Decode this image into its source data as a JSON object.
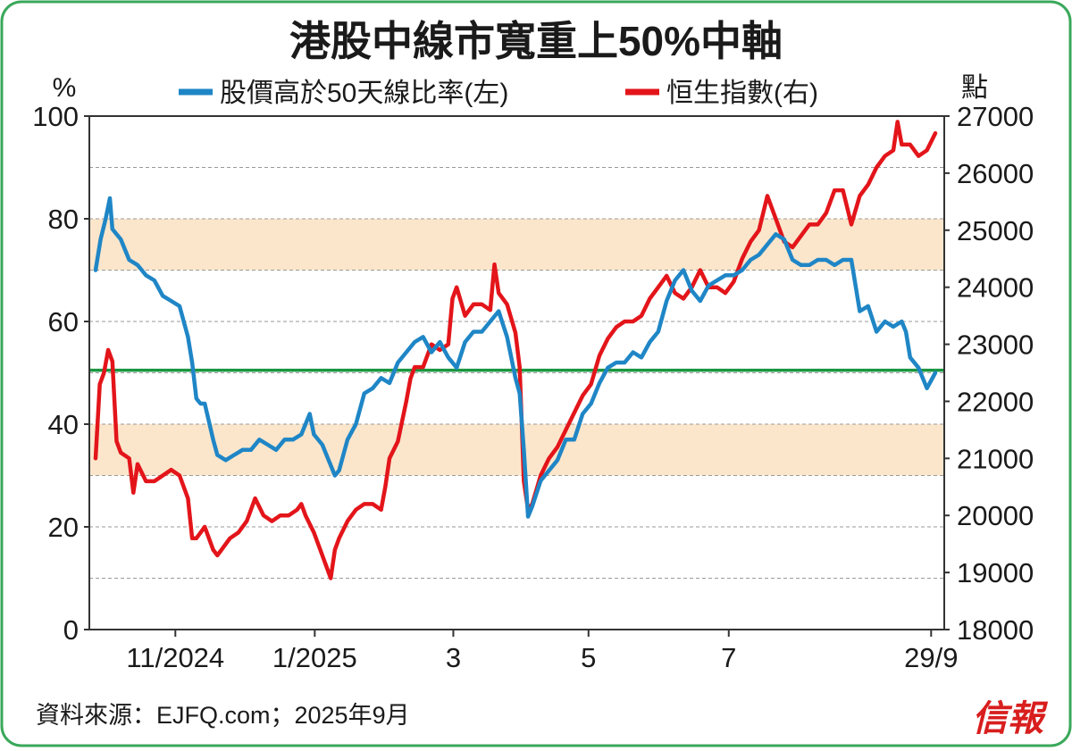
{
  "chart_data": {
    "type": "line",
    "title": "港股中線市寬重上50%中軸",
    "source": "資料來源：EJFQ.com；2025年9月",
    "logo_text": "信報",
    "left_axis": {
      "unit": "%",
      "range": [
        0,
        100
      ],
      "ticks": [
        "0",
        "20",
        "40",
        "60",
        "80",
        "100"
      ]
    },
    "right_axis": {
      "unit": "點",
      "range": [
        18000,
        27000
      ],
      "ticks": [
        "18000",
        "19000",
        "20000",
        "21000",
        "22000",
        "23000",
        "24000",
        "25000",
        "26000",
        "27000"
      ]
    },
    "x_tick_labels": [
      "11/2024",
      "1/2025",
      "3",
      "5",
      "7",
      "29/9"
    ],
    "x_ticks": [
      {
        "label": "11/2024",
        "t": 0.095
      },
      {
        "label": "1/2025",
        "t": 0.261
      },
      {
        "label": "3",
        "t": 0.426
      },
      {
        "label": "5",
        "t": 0.587
      },
      {
        "label": "7",
        "t": 0.754
      },
      {
        "label": "29/9",
        "t": 0.995
      }
    ],
    "bands": [
      {
        "from": 30,
        "to": 40
      },
      {
        "from": 70,
        "to": 80
      }
    ],
    "reference_line": {
      "value": 50.5,
      "color": "#1a9641"
    },
    "grid": true,
    "legend_position": "top",
    "series": [
      {
        "name": "股價高於50天線比率(左)",
        "axis": "left",
        "color": "#1f86c6",
        "points": [
          [
            0.0,
            70
          ],
          [
            0.006,
            76
          ],
          [
            0.012,
            80
          ],
          [
            0.017,
            84
          ],
          [
            0.02,
            78
          ],
          [
            0.03,
            76
          ],
          [
            0.04,
            72
          ],
          [
            0.05,
            71
          ],
          [
            0.055,
            70
          ],
          [
            0.06,
            69
          ],
          [
            0.07,
            68
          ],
          [
            0.08,
            65
          ],
          [
            0.09,
            64
          ],
          [
            0.1,
            63
          ],
          [
            0.11,
            57
          ],
          [
            0.115,
            52
          ],
          [
            0.12,
            45
          ],
          [
            0.125,
            44
          ],
          [
            0.13,
            44
          ],
          [
            0.14,
            37
          ],
          [
            0.145,
            34
          ],
          [
            0.155,
            33
          ],
          [
            0.165,
            34
          ],
          [
            0.175,
            35
          ],
          [
            0.185,
            35
          ],
          [
            0.195,
            37
          ],
          [
            0.205,
            36
          ],
          [
            0.215,
            35
          ],
          [
            0.225,
            37
          ],
          [
            0.235,
            37
          ],
          [
            0.245,
            38
          ],
          [
            0.255,
            42
          ],
          [
            0.26,
            38
          ],
          [
            0.27,
            36
          ],
          [
            0.28,
            32
          ],
          [
            0.285,
            30
          ],
          [
            0.29,
            31
          ],
          [
            0.3,
            37
          ],
          [
            0.31,
            40
          ],
          [
            0.32,
            46
          ],
          [
            0.33,
            47
          ],
          [
            0.34,
            49
          ],
          [
            0.35,
            48
          ],
          [
            0.36,
            52
          ],
          [
            0.37,
            54
          ],
          [
            0.38,
            56
          ],
          [
            0.39,
            57
          ],
          [
            0.4,
            54
          ],
          [
            0.41,
            56
          ],
          [
            0.42,
            53
          ],
          [
            0.43,
            51
          ],
          [
            0.44,
            56
          ],
          [
            0.45,
            58
          ],
          [
            0.46,
            58
          ],
          [
            0.47,
            60
          ],
          [
            0.48,
            62
          ],
          [
            0.49,
            57
          ],
          [
            0.5,
            49
          ],
          [
            0.505,
            46
          ],
          [
            0.51,
            35
          ],
          [
            0.515,
            22
          ],
          [
            0.52,
            24
          ],
          [
            0.53,
            29
          ],
          [
            0.54,
            31
          ],
          [
            0.55,
            33
          ],
          [
            0.56,
            37
          ],
          [
            0.57,
            37
          ],
          [
            0.58,
            42
          ],
          [
            0.59,
            44
          ],
          [
            0.6,
            48
          ],
          [
            0.61,
            51
          ],
          [
            0.62,
            52
          ],
          [
            0.63,
            52
          ],
          [
            0.64,
            54
          ],
          [
            0.65,
            53
          ],
          [
            0.66,
            56
          ],
          [
            0.67,
            58
          ],
          [
            0.68,
            64
          ],
          [
            0.69,
            68
          ],
          [
            0.7,
            70
          ],
          [
            0.71,
            66
          ],
          [
            0.72,
            64
          ],
          [
            0.73,
            67
          ],
          [
            0.74,
            68
          ],
          [
            0.75,
            69
          ],
          [
            0.76,
            69
          ],
          [
            0.77,
            70
          ],
          [
            0.78,
            72
          ],
          [
            0.79,
            73
          ],
          [
            0.8,
            75
          ],
          [
            0.81,
            77
          ],
          [
            0.82,
            76
          ],
          [
            0.83,
            72
          ],
          [
            0.84,
            71
          ],
          [
            0.85,
            71
          ],
          [
            0.86,
            72
          ],
          [
            0.87,
            72
          ],
          [
            0.88,
            71
          ],
          [
            0.89,
            72
          ],
          [
            0.9,
            72
          ],
          [
            0.91,
            62
          ],
          [
            0.92,
            63
          ],
          [
            0.93,
            58
          ],
          [
            0.94,
            60
          ],
          [
            0.95,
            59
          ],
          [
            0.96,
            60
          ],
          [
            0.965,
            58
          ],
          [
            0.97,
            53
          ],
          [
            0.98,
            51
          ],
          [
            0.99,
            47
          ],
          [
            1.0,
            50
          ]
        ]
      },
      {
        "name": "恒生指數(右)",
        "axis": "right",
        "color": "#e3151a",
        "points": [
          [
            0.0,
            21000
          ],
          [
            0.005,
            22300
          ],
          [
            0.01,
            22500
          ],
          [
            0.015,
            22900
          ],
          [
            0.02,
            22700
          ],
          [
            0.025,
            21300
          ],
          [
            0.03,
            21100
          ],
          [
            0.04,
            21000
          ],
          [
            0.045,
            20400
          ],
          [
            0.05,
            20900
          ],
          [
            0.06,
            20600
          ],
          [
            0.07,
            20600
          ],
          [
            0.08,
            20700
          ],
          [
            0.09,
            20800
          ],
          [
            0.1,
            20700
          ],
          [
            0.11,
            20300
          ],
          [
            0.115,
            19600
          ],
          [
            0.12,
            19600
          ],
          [
            0.125,
            19700
          ],
          [
            0.13,
            19800
          ],
          [
            0.14,
            19400
          ],
          [
            0.145,
            19300
          ],
          [
            0.15,
            19400
          ],
          [
            0.16,
            19600
          ],
          [
            0.17,
            19700
          ],
          [
            0.18,
            19900
          ],
          [
            0.19,
            20300
          ],
          [
            0.2,
            20000
          ],
          [
            0.21,
            19900
          ],
          [
            0.22,
            20000
          ],
          [
            0.23,
            20000
          ],
          [
            0.24,
            20100
          ],
          [
            0.245,
            20200
          ],
          [
            0.25,
            20000
          ],
          [
            0.26,
            19700
          ],
          [
            0.27,
            19300
          ],
          [
            0.275,
            19100
          ],
          [
            0.28,
            18900
          ],
          [
            0.285,
            19400
          ],
          [
            0.29,
            19600
          ],
          [
            0.3,
            19900
          ],
          [
            0.31,
            20100
          ],
          [
            0.32,
            20200
          ],
          [
            0.33,
            20200
          ],
          [
            0.34,
            20100
          ],
          [
            0.345,
            20500
          ],
          [
            0.35,
            21000
          ],
          [
            0.36,
            21300
          ],
          [
            0.37,
            22000
          ],
          [
            0.375,
            22400
          ],
          [
            0.38,
            22600
          ],
          [
            0.39,
            22600
          ],
          [
            0.4,
            23000
          ],
          [
            0.41,
            22900
          ],
          [
            0.42,
            23000
          ],
          [
            0.425,
            23800
          ],
          [
            0.43,
            24000
          ],
          [
            0.44,
            23500
          ],
          [
            0.45,
            23700
          ],
          [
            0.46,
            23700
          ],
          [
            0.47,
            23600
          ],
          [
            0.475,
            24400
          ],
          [
            0.48,
            23900
          ],
          [
            0.49,
            23700
          ],
          [
            0.5,
            23200
          ],
          [
            0.505,
            22600
          ],
          [
            0.51,
            20600
          ],
          [
            0.515,
            20100
          ],
          [
            0.52,
            20200
          ],
          [
            0.53,
            20700
          ],
          [
            0.54,
            21000
          ],
          [
            0.55,
            21200
          ],
          [
            0.56,
            21500
          ],
          [
            0.57,
            21800
          ],
          [
            0.58,
            22100
          ],
          [
            0.59,
            22300
          ],
          [
            0.6,
            22800
          ],
          [
            0.61,
            23100
          ],
          [
            0.62,
            23300
          ],
          [
            0.63,
            23400
          ],
          [
            0.64,
            23400
          ],
          [
            0.65,
            23500
          ],
          [
            0.66,
            23800
          ],
          [
            0.67,
            24000
          ],
          [
            0.68,
            24200
          ],
          [
            0.69,
            23900
          ],
          [
            0.7,
            23800
          ],
          [
            0.71,
            24000
          ],
          [
            0.72,
            24300
          ],
          [
            0.73,
            24000
          ],
          [
            0.74,
            24000
          ],
          [
            0.75,
            23900
          ],
          [
            0.76,
            24100
          ],
          [
            0.77,
            24500
          ],
          [
            0.78,
            24800
          ],
          [
            0.79,
            25000
          ],
          [
            0.8,
            25600
          ],
          [
            0.81,
            25200
          ],
          [
            0.82,
            24800
          ],
          [
            0.83,
            24700
          ],
          [
            0.84,
            24900
          ],
          [
            0.85,
            25100
          ],
          [
            0.86,
            25100
          ],
          [
            0.87,
            25300
          ],
          [
            0.88,
            25700
          ],
          [
            0.89,
            25700
          ],
          [
            0.9,
            25100
          ],
          [
            0.91,
            25600
          ],
          [
            0.92,
            25800
          ],
          [
            0.93,
            26100
          ],
          [
            0.94,
            26300
          ],
          [
            0.95,
            26400
          ],
          [
            0.955,
            26900
          ],
          [
            0.96,
            26500
          ],
          [
            0.97,
            26500
          ],
          [
            0.98,
            26300
          ],
          [
            0.99,
            26400
          ],
          [
            1.0,
            26700
          ]
        ]
      }
    ]
  }
}
